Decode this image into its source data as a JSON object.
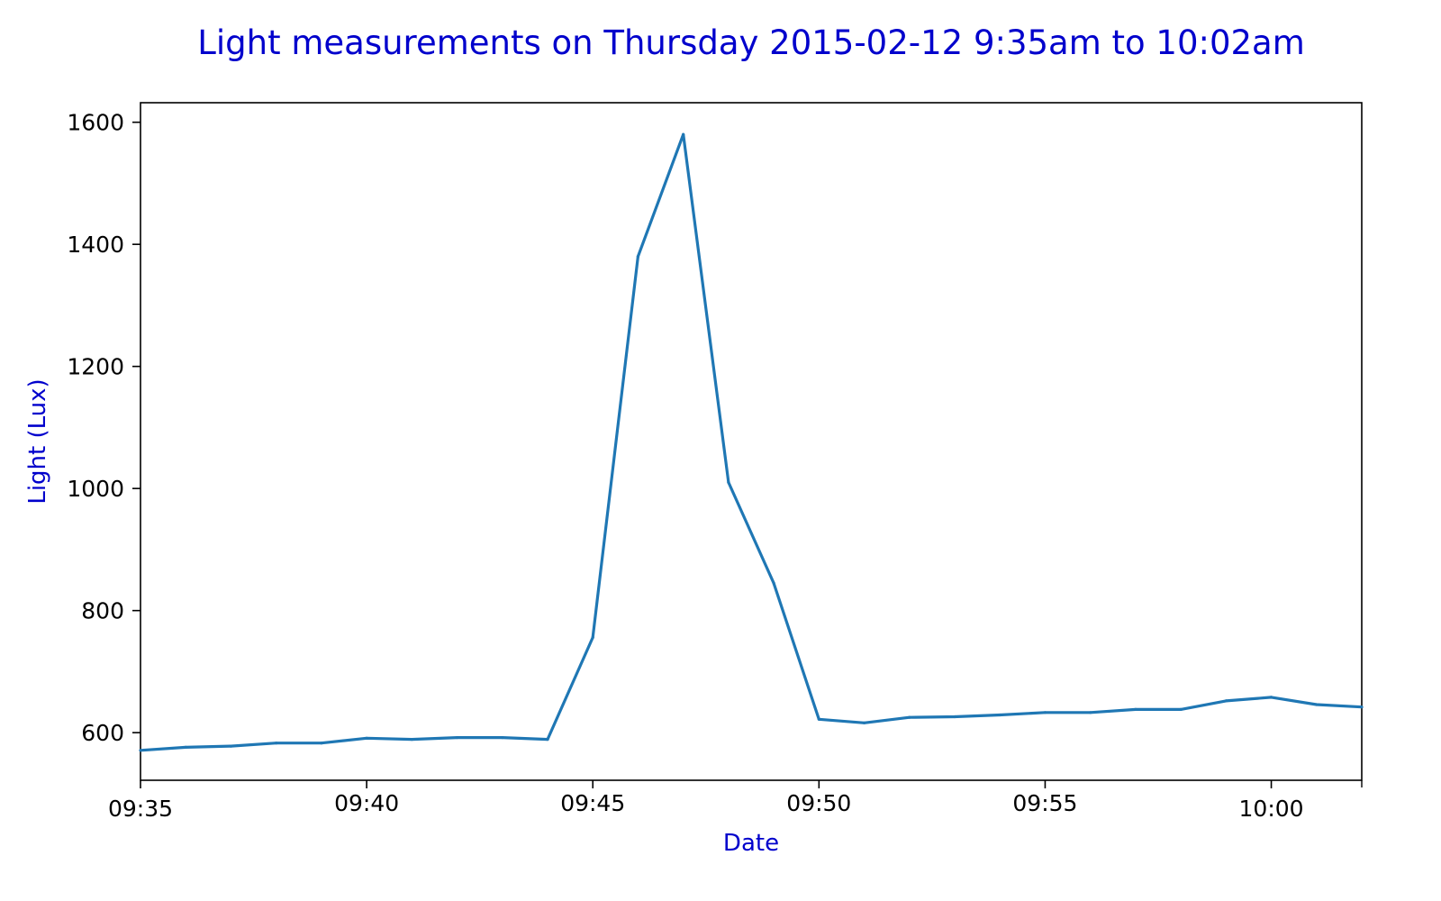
{
  "chart_data": {
    "type": "line",
    "title": "Light measurements on Thursday 2015-02-12 9:35am to 10:02am",
    "xlabel": "Date",
    "ylabel": "Light (Lux)",
    "x": [
      "09:35",
      "09:36",
      "09:37",
      "09:38",
      "09:39",
      "09:40",
      "09:41",
      "09:42",
      "09:43",
      "09:44",
      "09:45",
      "09:46",
      "09:47",
      "09:48",
      "09:49",
      "09:50",
      "09:51",
      "09:52",
      "09:53",
      "09:54",
      "09:55",
      "09:56",
      "09:57",
      "09:58",
      "09:59",
      "10:00",
      "10:01",
      "10:02"
    ],
    "series": [
      {
        "values": [
          571,
          576,
          578,
          583,
          583,
          591,
          589,
          592,
          592,
          589,
          756,
          1380,
          1580,
          1010,
          845,
          622,
          616,
          625,
          626,
          629,
          633,
          633,
          638,
          638,
          652,
          658,
          646,
          642
        ],
        "color": "#1f77b4"
      }
    ],
    "xlim": [
      "09:35",
      "10:02"
    ],
    "ylim": [
      522,
      1632
    ],
    "xticks": [
      "09:35",
      "09:40",
      "09:45",
      "09:50",
      "09:55",
      "10:00"
    ],
    "yticks": [
      600,
      800,
      1000,
      1200,
      1400,
      1600
    ],
    "grid": false,
    "text_color": "#0000cc"
  }
}
